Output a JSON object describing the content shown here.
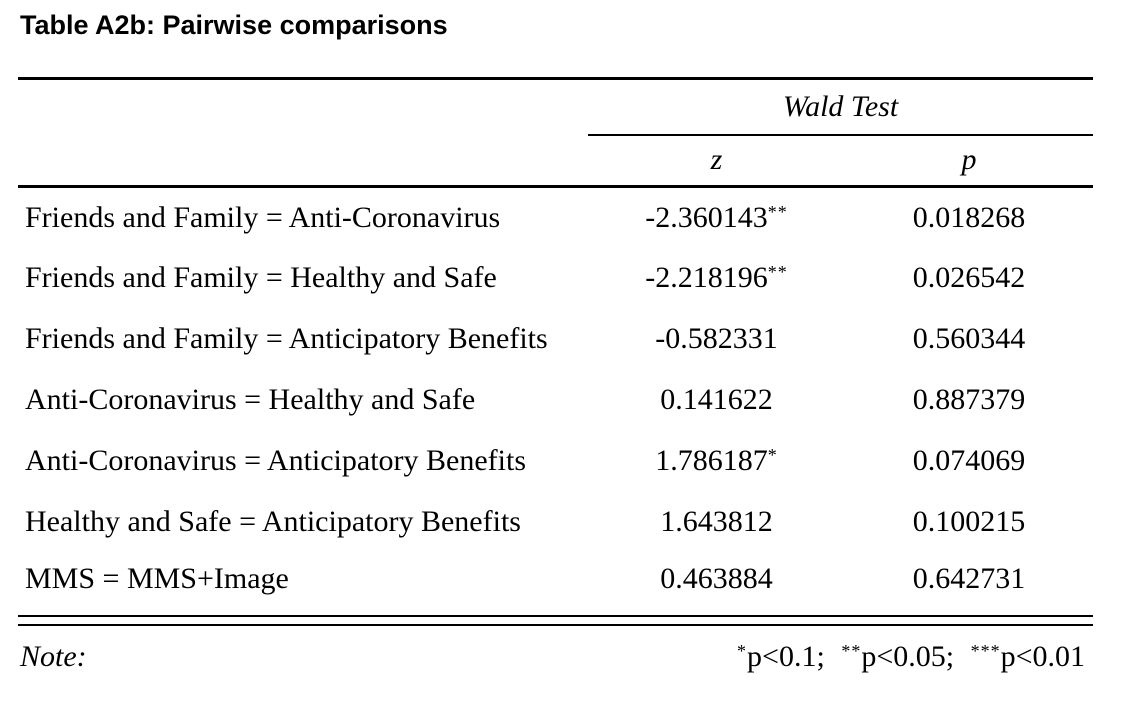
{
  "title": "Table A2b: Pairwise comparisons",
  "table": {
    "spanner": "Wald Test",
    "columns": {
      "z": "z",
      "p": "p"
    },
    "rows": [
      {
        "label": "Friends and Family = Anti-Coronavirus",
        "z": "-2.360143",
        "z_stars": "**",
        "p": "0.018268"
      },
      {
        "label": "Friends and Family = Healthy and Safe",
        "z": "-2.218196",
        "z_stars": "**",
        "p": "0.026542"
      },
      {
        "label": "Friends and Family = Anticipatory Benefits",
        "z": "-0.582331",
        "z_stars": "",
        "p": "0.560344"
      },
      {
        "label": "Anti-Coronavirus = Healthy and Safe",
        "z": "0.141622",
        "z_stars": "",
        "p": "0.887379"
      },
      {
        "label": "Anti-Coronavirus = Anticipatory Benefits",
        "z": "1.786187",
        "z_stars": "*",
        "p": "0.074069"
      },
      {
        "label": "Healthy and Safe = Anticipatory Benefits",
        "z": "1.643812",
        "z_stars": "",
        "p": "0.100215"
      },
      {
        "label": "MMS = MMS+Image",
        "z": "0.463884",
        "z_stars": "",
        "p": "0.642731"
      }
    ],
    "note_label": "Note:",
    "legend": [
      {
        "stars": "*",
        "text": "p<0.1;"
      },
      {
        "stars": "**",
        "text": "p<0.05;"
      },
      {
        "stars": "***",
        "text": "p<0.01"
      }
    ]
  }
}
